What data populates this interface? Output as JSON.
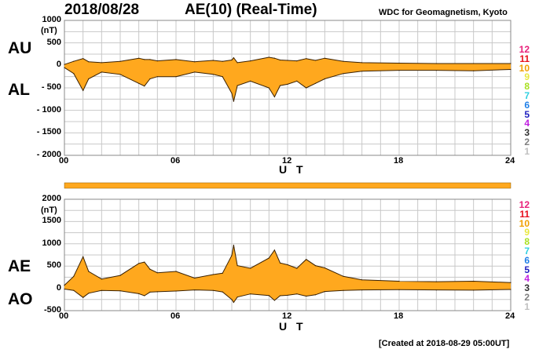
{
  "header": {
    "date": "2018/08/28",
    "title": "AE(10) (Real-Time)",
    "organization": "WDC for Geomagnetism, Kyoto"
  },
  "footer": {
    "created": "[Created at 2018-08-29 05:00UT]"
  },
  "legend": {
    "entries": [
      "12",
      "11",
      "10",
      "9",
      "8",
      "7",
      "6",
      "5",
      "4",
      "3",
      "2",
      "1"
    ],
    "colors": [
      "#e8207a",
      "#e8101c",
      "#f0a000",
      "#e8e840",
      "#a8e020",
      "#30d0e0",
      "#2080e8",
      "#2020c0",
      "#c020e0",
      "#303030",
      "#808080",
      "#c0c0c0"
    ]
  },
  "colors": {
    "fill": "#ffa81e",
    "line": "#3a2000",
    "grid": "#c8c8c8"
  },
  "chart_data": [
    {
      "type": "area",
      "panel": "AU/AL",
      "labels": {
        "upper": "AU",
        "lower": "AL"
      },
      "unit": "(nT)",
      "xlabel": "U T",
      "x_ticks": [
        "00",
        "06",
        "12",
        "18",
        "24"
      ],
      "y_ticks": [
        "1000",
        "500",
        "0",
        "- 500",
        "- 1000",
        "- 1500",
        "- 2000"
      ],
      "ylim": [
        -2000,
        1000
      ],
      "x": [
        0,
        0.5,
        1,
        1.3,
        2,
        3,
        4,
        4.3,
        4.6,
        5,
        6,
        7,
        8,
        8.5,
        9,
        9.1,
        9.3,
        10,
        11,
        11.3,
        11.6,
        12,
        12.5,
        13,
        13.5,
        14,
        15,
        16,
        18,
        20,
        22,
        24
      ],
      "series": [
        {
          "name": "AU",
          "values": [
            20,
            90,
            150,
            80,
            60,
            90,
            160,
            130,
            130,
            100,
            130,
            80,
            110,
            90,
            120,
            170,
            60,
            100,
            180,
            160,
            120,
            110,
            100,
            150,
            110,
            160,
            90,
            60,
            50,
            40,
            40,
            40
          ]
        },
        {
          "name": "AL",
          "values": [
            -50,
            -180,
            -560,
            -300,
            -150,
            -200,
            -400,
            -460,
            -300,
            -250,
            -250,
            -150,
            -200,
            -250,
            -620,
            -800,
            -450,
            -350,
            -500,
            -700,
            -450,
            -420,
            -350,
            -500,
            -400,
            -300,
            -180,
            -130,
            -110,
            -110,
            -120,
            -90
          ]
        }
      ]
    },
    {
      "type": "area",
      "panel": "AE/AO",
      "labels": {
        "upper": "AE",
        "lower": "AO"
      },
      "unit": "(nT)",
      "xlabel": "U T",
      "x_ticks": [
        "00",
        "06",
        "12",
        "18",
        "24"
      ],
      "y_ticks": [
        "2000",
        "1500",
        "1000",
        "500",
        "0",
        "-500"
      ],
      "ylim": [
        -500,
        2000
      ],
      "x": [
        0,
        0.5,
        1,
        1.3,
        2,
        3,
        4,
        4.3,
        4.6,
        5,
        6,
        7,
        8,
        8.5,
        9,
        9.1,
        9.3,
        10,
        11,
        11.3,
        11.6,
        12,
        12.5,
        13,
        13.5,
        14,
        15,
        16,
        18,
        20,
        22,
        24
      ],
      "series": [
        {
          "name": "AE",
          "values": [
            70,
            270,
            710,
            380,
            210,
            290,
            560,
            590,
            430,
            350,
            380,
            230,
            310,
            340,
            740,
            970,
            510,
            450,
            680,
            860,
            570,
            530,
            450,
            650,
            510,
            460,
            270,
            190,
            160,
            150,
            160,
            130
          ]
        },
        {
          "name": "AO",
          "values": [
            -15,
            -45,
            -205,
            -110,
            -45,
            -55,
            -120,
            -165,
            -85,
            -75,
            -60,
            -35,
            -45,
            -80,
            -250,
            -315,
            -195,
            -125,
            -160,
            -270,
            -165,
            -155,
            -125,
            -175,
            -145,
            -70,
            -45,
            -35,
            -30,
            -35,
            -40,
            -25
          ]
        }
      ]
    }
  ]
}
